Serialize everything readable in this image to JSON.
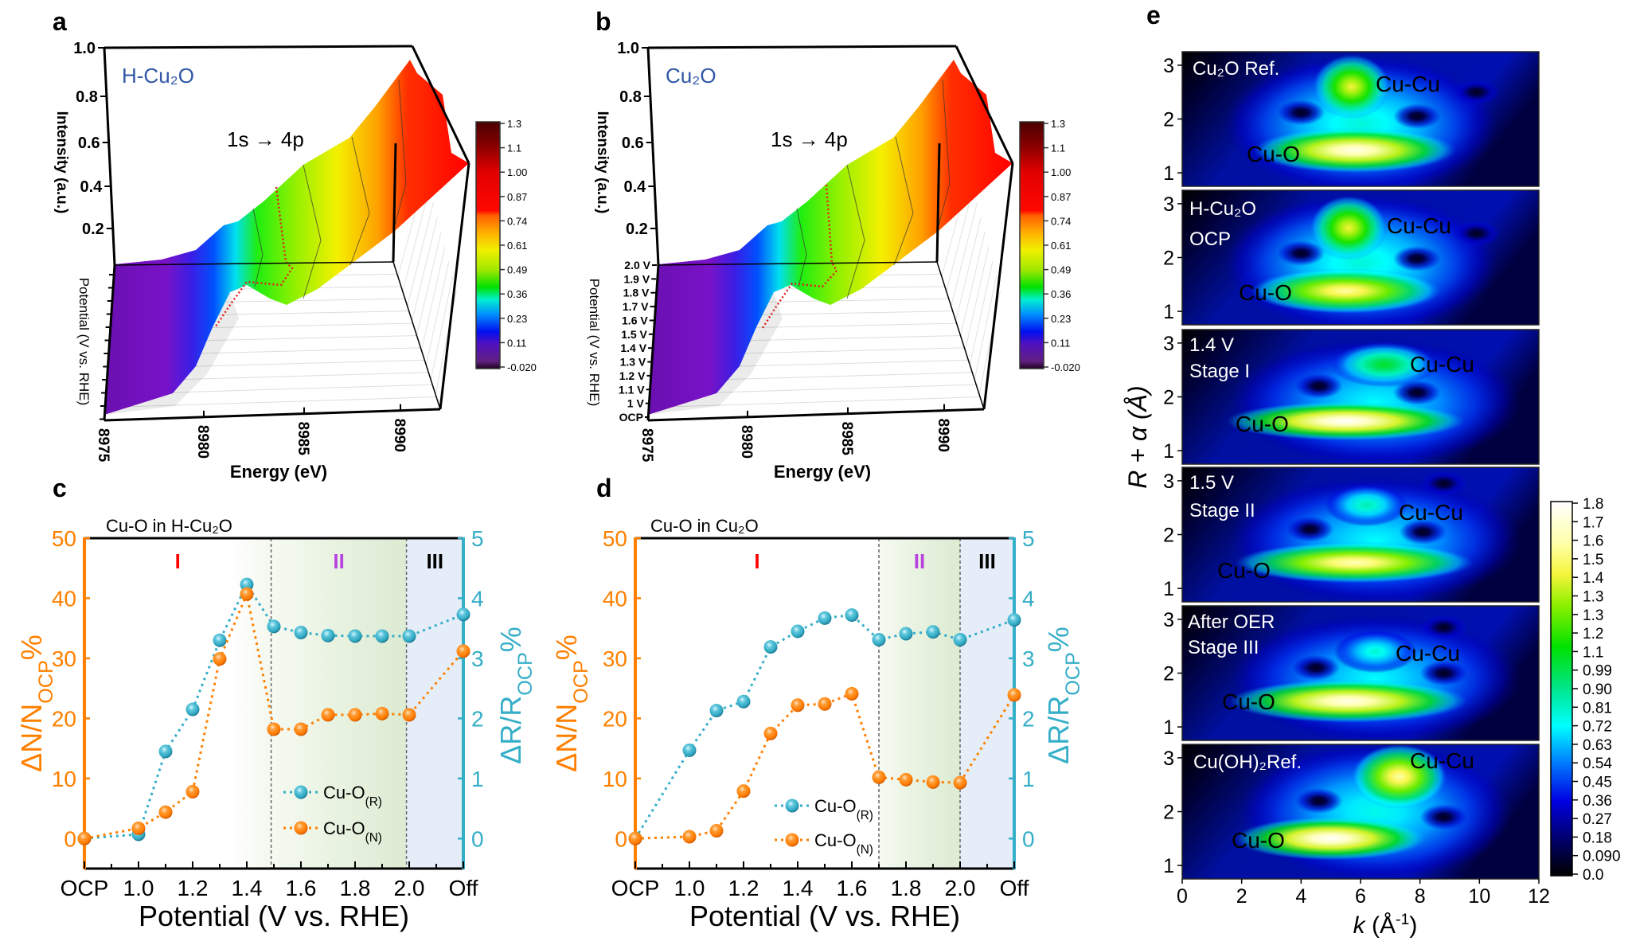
{
  "figure": {
    "panel_labels": {
      "a": "a",
      "b": "b",
      "c": "c",
      "d": "d",
      "e": "e"
    }
  },
  "chart_data": [
    {
      "panel": "a",
      "type": "surface",
      "sample_label": "H-Cu₂O",
      "annotation": "1s → 4p",
      "xlabel": "Energy (eV)",
      "ylabel": "Potential (V vs. RHE)",
      "zlabel": "Intensity (a.u.)",
      "x_ticks": [
        "8975",
        "8980",
        "8985",
        "8990"
      ],
      "z_ticks": [
        "1.0",
        "0.8",
        "0.6",
        "0.4",
        "0.2"
      ],
      "y_ticks": [],
      "colorbar": {
        "ticks": [
          "1.3",
          "1.1",
          "1.00",
          "0.87",
          "0.74",
          "0.61",
          "0.49",
          "0.36",
          "0.23",
          "0.11",
          "-0.020"
        ]
      },
      "colors": {
        "label": "#2f56a6",
        "marker_line": "#e02020"
      }
    },
    {
      "panel": "b",
      "type": "surface",
      "sample_label": "Cu₂O",
      "annotation": "1s → 4p",
      "xlabel": "Energy (eV)",
      "ylabel": "Potential (V vs. RHE)",
      "zlabel": "Intensity (a.u.)",
      "x_ticks": [
        "8975",
        "8980",
        "8985",
        "8990"
      ],
      "z_ticks": [
        "1.0",
        "0.8",
        "0.6",
        "0.4",
        "0.2"
      ],
      "y_ticks": [
        "2.0 V",
        "1.9 V",
        "1.8 V",
        "1.7 V",
        "1.6 V",
        "1.5 V",
        "1.4 V",
        "1.3 V",
        "1.2 V",
        "1.1 V",
        "1 V",
        "OCP"
      ],
      "colorbar": {
        "ticks": [
          "1.3",
          "1.1",
          "1.00",
          "0.87",
          "0.74",
          "0.61",
          "0.49",
          "0.36",
          "0.23",
          "0.11",
          "-0.020"
        ]
      },
      "colors": {
        "label": "#2f56a6",
        "marker_line": "#e02020"
      }
    },
    {
      "panel": "c",
      "type": "line",
      "title": "Cu-O in H-Cu₂O",
      "xlabel": "Potential (V vs. RHE)",
      "ylabel": {
        "main": "ΔN/N",
        "sub": "OCP",
        "suffix": "%"
      },
      "y2label": {
        "main": "ΔR/R",
        "sub": "OCP",
        "suffix": "%"
      },
      "x": [
        0.8,
        1.0,
        1.1,
        1.2,
        1.3,
        1.4,
        1.5,
        1.6,
        1.7,
        1.8,
        1.9,
        2.0,
        2.2
      ],
      "x_ticks": [
        {
          "v": 0.8,
          "label": "OCP"
        },
        {
          "v": 1.0,
          "label": "1.0"
        },
        {
          "v": 1.2,
          "label": "1.2"
        },
        {
          "v": 1.4,
          "label": "1.4"
        },
        {
          "v": 1.6,
          "label": "1.6"
        },
        {
          "v": 1.8,
          "label": "1.8"
        },
        {
          "v": 2.0,
          "label": "2.0"
        },
        {
          "v": 2.2,
          "label": "Off"
        }
      ],
      "xlim": [
        0.8,
        2.2
      ],
      "ylim": [
        -5,
        50
      ],
      "y_ticks": [
        0,
        10,
        20,
        30,
        40,
        50
      ],
      "y2lim": [
        -0.5,
        5
      ],
      "y2_ticks": [
        0,
        1,
        2,
        3,
        4,
        5
      ],
      "series": [
        {
          "name": "Cu-O",
          "sub": "(R)",
          "axis": "right",
          "color": "#35aec8",
          "values": [
            0,
            0.07,
            1.45,
            2.15,
            3.3,
            4.23,
            3.53,
            3.43,
            3.38,
            3.37,
            3.37,
            3.37,
            3.73
          ]
        },
        {
          "name": "Cu-O",
          "sub": "(N)",
          "axis": "left",
          "color": "#ff8000",
          "values": [
            0,
            1.7,
            4.4,
            7.8,
            29.9,
            40.7,
            18.2,
            18.2,
            20.6,
            20.6,
            20.8,
            20.6,
            31.2
          ]
        }
      ],
      "regions": [
        {
          "label": "I",
          "from": 0.8,
          "to": 1.49,
          "color": "#ff0000",
          "fill": "#ffffff"
        },
        {
          "label": "II",
          "from": 1.49,
          "to": 1.99,
          "color": "#b844e0",
          "fill": "#dfeed6"
        },
        {
          "label": "III",
          "from": 1.99,
          "to": 2.2,
          "color": "#000000",
          "fill": "#e5eef8"
        }
      ],
      "grid": false,
      "legend": "lower-center"
    },
    {
      "panel": "d",
      "type": "line",
      "title": "Cu-O in Cu₂O",
      "xlabel": "Potential (V vs. RHE)",
      "ylabel": {
        "main": "ΔN/N",
        "sub": "OCP",
        "suffix": "%"
      },
      "y2label": {
        "main": "ΔR/R",
        "sub": "OCP",
        "suffix": "%"
      },
      "x": [
        0.8,
        1.0,
        1.1,
        1.2,
        1.3,
        1.4,
        1.5,
        1.6,
        1.7,
        1.8,
        1.9,
        2.0,
        2.2
      ],
      "x_ticks": [
        {
          "v": 0.8,
          "label": "OCP"
        },
        {
          "v": 1.0,
          "label": "1.0"
        },
        {
          "v": 1.2,
          "label": "1.2"
        },
        {
          "v": 1.4,
          "label": "1.4"
        },
        {
          "v": 1.6,
          "label": "1.6"
        },
        {
          "v": 1.8,
          "label": "1.8"
        },
        {
          "v": 2.0,
          "label": "2.0"
        },
        {
          "v": 2.2,
          "label": "Off"
        }
      ],
      "xlim": [
        0.8,
        2.2
      ],
      "ylim": [
        -5,
        50
      ],
      "y_ticks": [
        0,
        10,
        20,
        30,
        40,
        50
      ],
      "y2lim": [
        -0.5,
        5
      ],
      "y2_ticks": [
        0,
        1,
        2,
        3,
        4,
        5
      ],
      "series": [
        {
          "name": "Cu-O",
          "sub": "(R)",
          "axis": "right",
          "color": "#35aec8",
          "values": [
            0,
            1.47,
            2.13,
            2.28,
            3.19,
            3.45,
            3.67,
            3.72,
            3.31,
            3.41,
            3.44,
            3.31,
            3.64
          ]
        },
        {
          "name": "Cu-O",
          "sub": "(N)",
          "axis": "left",
          "color": "#ff8000",
          "values": [
            0,
            0.3,
            1.3,
            7.9,
            17.5,
            22.2,
            22.4,
            24.1,
            10.2,
            9.8,
            9.4,
            9.3,
            23.9
          ]
        }
      ],
      "regions": [
        {
          "label": "I",
          "from": 0.8,
          "to": 1.7,
          "color": "#ff0000",
          "fill": "#ffffff"
        },
        {
          "label": "II",
          "from": 1.7,
          "to": 2.0,
          "color": "#b844e0",
          "fill": "#dfeed6"
        },
        {
          "label": "III",
          "from": 2.0,
          "to": 2.2,
          "color": "#000000",
          "fill": "#e5eef8"
        }
      ],
      "grid": false,
      "legend": "lower-center"
    },
    {
      "panel": "e",
      "type": "heatmap",
      "xlabel": {
        "main": "k",
        "open": " (Å",
        "sup": "-1",
        "close": ")"
      },
      "ylabel": "R + α (Å)",
      "xlim": [
        0,
        12
      ],
      "x_ticks": [
        0,
        2,
        4,
        6,
        8,
        10,
        12
      ],
      "ylim": [
        0.75,
        3.25
      ],
      "y_ticks": [
        3,
        2,
        1
      ],
      "colorbar": {
        "ticks": [
          "1.8",
          "1.7",
          "1.6",
          "1.5",
          "1.4",
          "1.3",
          "1.3",
          "1.2",
          "1.1",
          "0.99",
          "0.90",
          "0.81",
          "0.72",
          "0.63",
          "0.54",
          "0.45",
          "0.36",
          "0.27",
          "0.18",
          "0.090",
          "0.0"
        ],
        "range": [
          0,
          1.8
        ]
      },
      "panels": [
        {
          "lines": [
            "Cu₂O Ref."
          ],
          "peak_labels": [
            "Cu-Cu",
            "Cu-O"
          ],
          "peaks": [
            {
              "k": 6,
              "R": 1.9,
              "wk": 4.6,
              "wR": 1.3,
              "amp": 0.78
            },
            {
              "k": 5.8,
              "R": 1.42,
              "wk": 3.4,
              "wR": 0.42,
              "amp": 1.75
            },
            {
              "k": 5.7,
              "R": 2.6,
              "wk": 1.3,
              "wR": 0.6,
              "amp": 1.45
            }
          ],
          "minima": [
            {
              "k": 4.0,
              "R": 2.12
            },
            {
              "k": 7.9,
              "R": 2.05
            },
            {
              "k": 9.9,
              "R": 2.5
            }
          ]
        },
        {
          "lines": [
            "H-Cu₂O",
            "OCP"
          ],
          "peak_labels": [
            "Cu-Cu",
            "Cu-O"
          ],
          "peaks": [
            {
              "k": 6,
              "R": 1.9,
              "wk": 4.6,
              "wR": 1.3,
              "amp": 0.78
            },
            {
              "k": 5.5,
              "R": 1.38,
              "wk": 3.2,
              "wR": 0.42,
              "amp": 1.6
            },
            {
              "k": 5.6,
              "R": 2.55,
              "wk": 1.3,
              "wR": 0.6,
              "amp": 1.45
            }
          ],
          "minima": [
            {
              "k": 4.0,
              "R": 2.08
            },
            {
              "k": 7.9,
              "R": 1.98
            },
            {
              "k": 9.9,
              "R": 2.45
            }
          ]
        },
        {
          "lines": [
            "1.4 V",
            "Stage I"
          ],
          "peak_labels": [
            "Cu-Cu",
            "Cu-O"
          ],
          "peaks": [
            {
              "k": 6.5,
              "R": 1.9,
              "wk": 4.9,
              "wR": 1.2,
              "amp": 0.72
            },
            {
              "k": 5.5,
              "R": 1.55,
              "wk": 4.0,
              "wR": 0.36,
              "amp": 1.8
            },
            {
              "k": 6.8,
              "R": 2.6,
              "wk": 1.8,
              "wR": 0.42,
              "amp": 1.05
            }
          ],
          "minima": [
            {
              "k": 4.6,
              "R": 2.2
            },
            {
              "k": 7.9,
              "R": 2.08
            }
          ]
        },
        {
          "lines": [
            "1.5 V",
            "Stage II"
          ],
          "peak_labels": [
            "Cu-Cu",
            "Cu-O"
          ],
          "peaks": [
            {
              "k": 6.5,
              "R": 1.9,
              "wk": 4.9,
              "wR": 1.2,
              "amp": 0.72
            },
            {
              "k": 5.8,
              "R": 1.48,
              "wk": 4.0,
              "wR": 0.38,
              "amp": 1.65
            },
            {
              "k": 6.2,
              "R": 2.55,
              "wk": 1.4,
              "wR": 0.4,
              "amp": 0.85
            }
          ],
          "minima": [
            {
              "k": 4.3,
              "R": 2.1
            },
            {
              "k": 8.1,
              "R": 2.05
            },
            {
              "k": 8.8,
              "R": 2.95
            }
          ]
        },
        {
          "lines": [
            "After OER",
            "Stage III"
          ],
          "peak_labels": [
            "Cu-Cu",
            "Cu-O"
          ],
          "peaks": [
            {
              "k": 6.5,
              "R": 1.9,
              "wk": 4.9,
              "wR": 1.2,
              "amp": 0.72
            },
            {
              "k": 5.6,
              "R": 1.48,
              "wk": 4.0,
              "wR": 0.4,
              "amp": 1.75
            },
            {
              "k": 6.5,
              "R": 2.4,
              "wk": 1.4,
              "wR": 0.4,
              "amp": 0.8
            }
          ],
          "minima": [
            {
              "k": 4.5,
              "R": 2.1
            },
            {
              "k": 8.8,
              "R": 2.0
            },
            {
              "k": 8.8,
              "R": 2.85
            }
          ]
        },
        {
          "lines": [
            "Cu(OH)₂Ref."
          ],
          "peak_labels": [
            "Cu-Cu",
            "Cu-O"
          ],
          "peaks": [
            {
              "k": 6.5,
              "R": 2.0,
              "wk": 4.6,
              "wR": 1.3,
              "amp": 0.75
            },
            {
              "k": 5.0,
              "R": 1.5,
              "wk": 3.2,
              "wR": 0.4,
              "amp": 1.8
            },
            {
              "k": 7.3,
              "R": 2.65,
              "wk": 1.6,
              "wR": 0.6,
              "amp": 1.6
            }
          ],
          "minima": [
            {
              "k": 4.6,
              "R": 2.2
            },
            {
              "k": 8.8,
              "R": 1.9
            }
          ]
        }
      ]
    }
  ]
}
